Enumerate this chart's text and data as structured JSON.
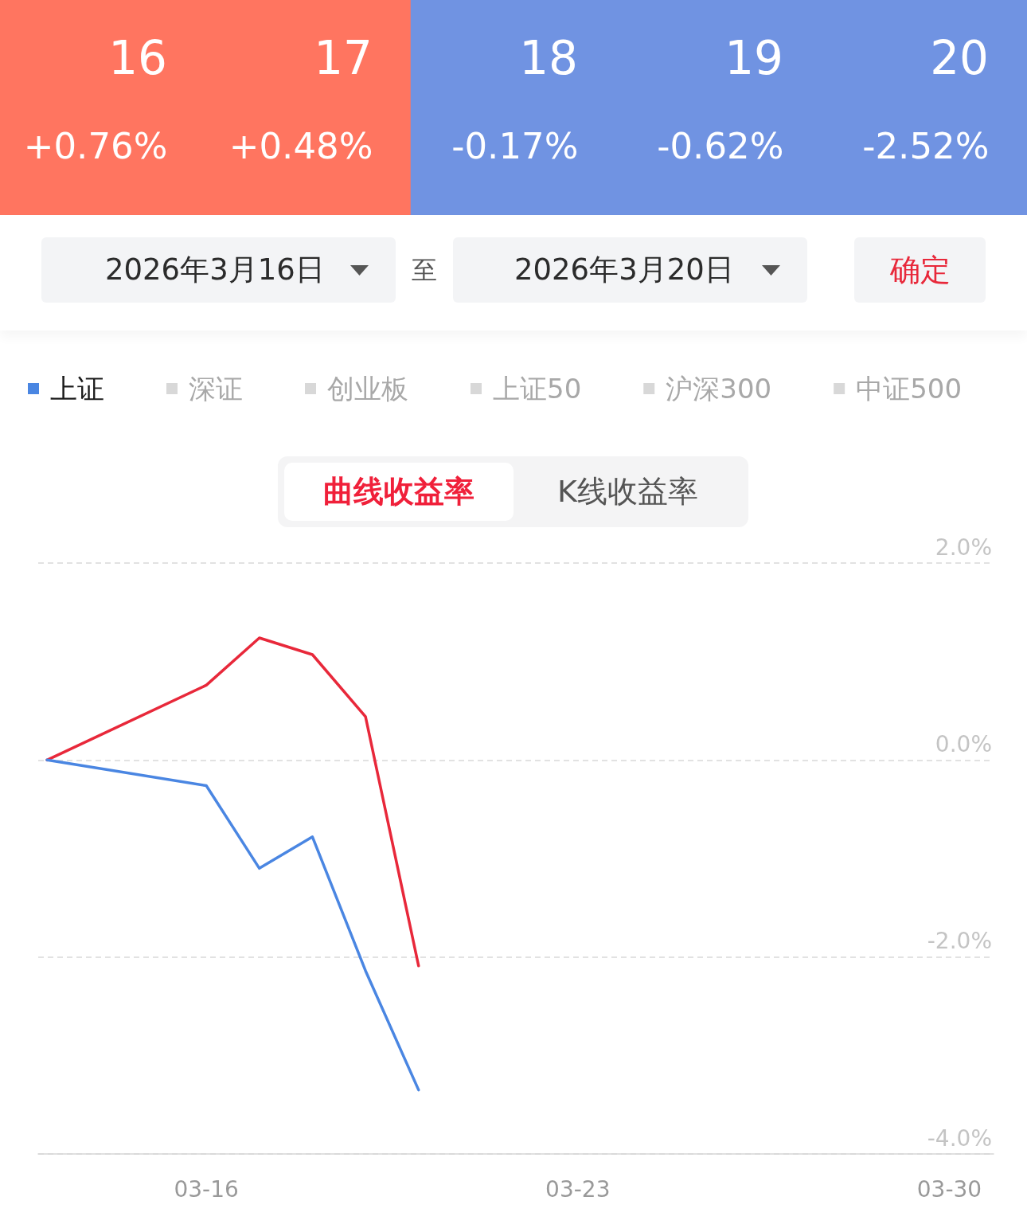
{
  "chart_data": [
    {
      "type": "heatmap",
      "categories": [
        "16",
        "17",
        "18",
        "19",
        "20"
      ],
      "y_categories": [
        null
      ],
      "cells": [
        [
          0.76,
          0.48,
          -0.17,
          -0.62,
          -2.52
        ]
      ],
      "cell_labels": [
        [
          "+0.76%",
          "+0.48%",
          "-0.17%",
          "-0.62%",
          "-2.52%"
        ]
      ],
      "colors": [
        "#ff7560",
        "#ff7560",
        "#7093e2",
        "#7093e2",
        "#7093e2"
      ]
    },
    {
      "type": "line",
      "x": [
        "2026-03-13",
        "2026-03-16",
        "2026-03-17",
        "2026-03-18",
        "2026-03-19",
        "2026-03-20"
      ],
      "series": [
        {
          "color": "#e8283a",
          "values": [
            0,
            0.76,
            1.24,
            1.07,
            0.44,
            -2.09
          ]
        },
        {
          "name": "上证",
          "color": "#4a86e2",
          "values": [
            0,
            -0.26,
            -1.1,
            -0.78,
            -2.14,
            -3.35
          ]
        },
        {
          "name": "深证",
          "color": "#a8a8a8",
          "values": [
            null,
            null,
            null,
            null,
            null,
            null
          ]
        },
        {
          "name": "创业板",
          "color": "#a8a8a8",
          "values": [
            null,
            null,
            null,
            null,
            null,
            null
          ]
        },
        {
          "name": "上证50",
          "color": "#a8a8a8",
          "values": [
            null,
            null,
            null,
            null,
            null,
            null
          ]
        },
        {
          "name": "沪深300",
          "color": "#a8a8a8",
          "values": [
            null,
            null,
            null,
            null,
            null,
            null
          ]
        },
        {
          "name": "中证500",
          "color": "#a8a8a8",
          "values": [
            null,
            null,
            null,
            null,
            null,
            null
          ]
        }
      ],
      "xlim": [
        "2026-03-12T20:00",
        "2026-03-30T20:00"
      ],
      "xticks": [
        {
          "value": "2026-03-16",
          "label": "03-16"
        },
        {
          "value": "2026-03-23",
          "label": "03-23"
        },
        {
          "value": "2026-03-30",
          "label": "03-30"
        }
      ],
      "ylim": [
        -4,
        2
      ],
      "yticks": [
        {
          "value": 2,
          "label": "2.0%"
        },
        {
          "value": 0,
          "label": "0.0%"
        },
        {
          "value": -2,
          "label": "-2.0%"
        },
        {
          "value": -4,
          "label": "-4.0%"
        }
      ],
      "grid": "y",
      "legend": "top",
      "marker": "none",
      "line_style": "solid",
      "annotations": [
        "2026年3月16日",
        "至",
        "2026年3月20日",
        "确定",
        "曲线收益率",
        "K线收益率"
      ]
    }
  ]
}
